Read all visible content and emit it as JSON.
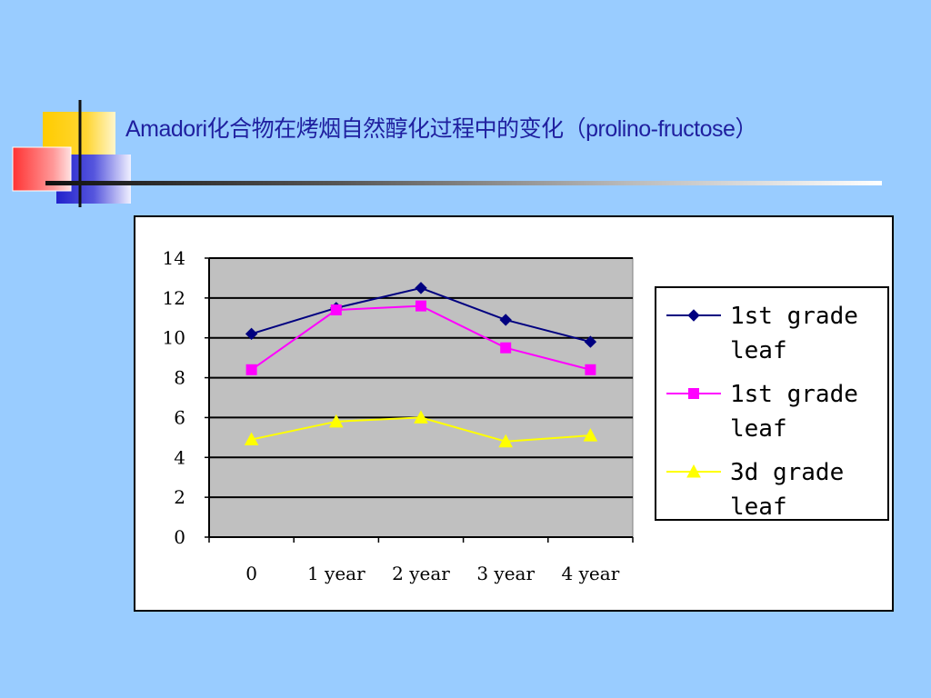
{
  "slide": {
    "title": "Amadori化合物在烤烟自然醇化过程中的变化（prolino-fructose）"
  },
  "chart_data": {
    "type": "line",
    "categories": [
      "0",
      "1 year",
      "2 year",
      "3 year",
      "4 year"
    ],
    "ylim": [
      0,
      14
    ],
    "yticks": [
      0,
      2,
      4,
      6,
      8,
      10,
      12,
      14
    ],
    "grid": true,
    "legend_position": "right",
    "plot_background": "#C0C0C0",
    "series": [
      {
        "name": "1st grade leaf",
        "values": [
          10.2,
          11.5,
          12.5,
          10.9,
          9.8
        ],
        "color": "#000080",
        "marker": "diamond"
      },
      {
        "name": "1st grade leaf",
        "values": [
          8.4,
          11.4,
          11.6,
          9.5,
          8.4
        ],
        "color": "#FF00FF",
        "marker": "square"
      },
      {
        "name": "3d grade leaf",
        "values": [
          4.9,
          5.8,
          6.0,
          4.8,
          5.1
        ],
        "color": "#FFFF00",
        "marker": "triangle"
      }
    ]
  }
}
